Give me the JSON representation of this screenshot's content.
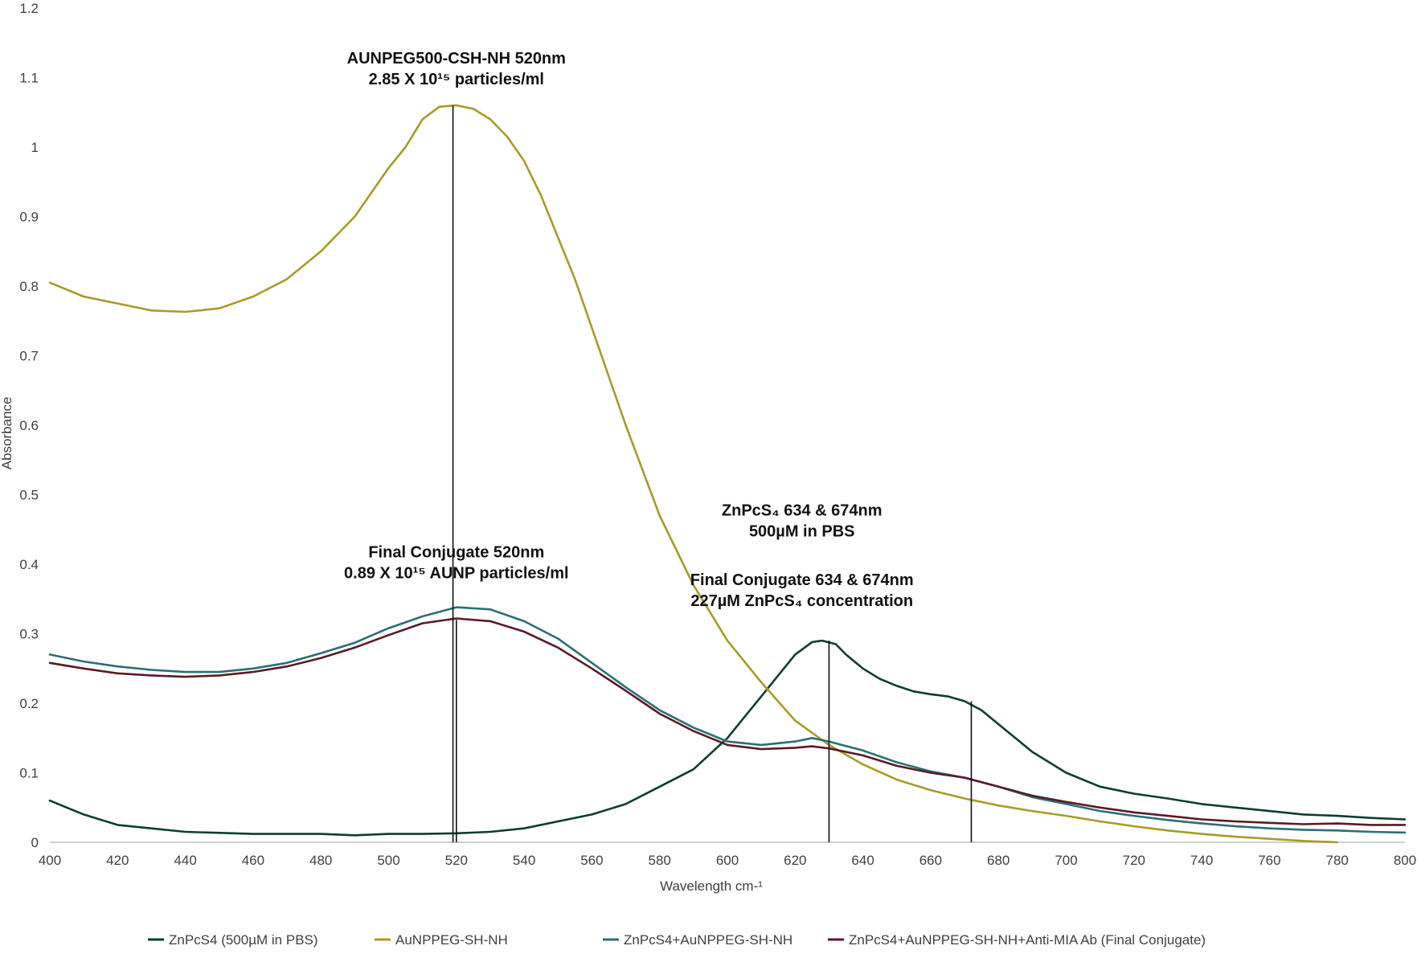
{
  "chart_data": {
    "type": "line",
    "title": "",
    "xlabel": "Wavelength cm-¹",
    "ylabel": "Absorbance",
    "xlim": [
      400,
      800
    ],
    "ylim": [
      0,
      1.2
    ],
    "x_ticks": [
      "400",
      "420",
      "440",
      "460",
      "480",
      "500",
      "520",
      "540",
      "560",
      "580",
      "600",
      "620",
      "640",
      "660",
      "680",
      "700",
      "720",
      "740",
      "760",
      "780",
      "800"
    ],
    "y_ticks": [
      "0",
      "0.1",
      "0.2",
      "0.3",
      "0.4",
      "0.5",
      "0.6",
      "0.7",
      "0.8",
      "0.9",
      "1",
      "1.1",
      "1.2"
    ],
    "grid": false,
    "legend_position": "bottom",
    "series": [
      {
        "name": "ZnPcS4 (500µM in PBS)",
        "color": "#0f3d2e",
        "points": [
          [
            400,
            0.06
          ],
          [
            405,
            0.05
          ],
          [
            410,
            0.04
          ],
          [
            420,
            0.025
          ],
          [
            430,
            0.02
          ],
          [
            440,
            0.015
          ],
          [
            460,
            0.012
          ],
          [
            480,
            0.012
          ],
          [
            490,
            0.01
          ],
          [
            500,
            0.012
          ],
          [
            510,
            0.012
          ],
          [
            520,
            0.013
          ],
          [
            530,
            0.015
          ],
          [
            540,
            0.02
          ],
          [
            550,
            0.03
          ],
          [
            560,
            0.04
          ],
          [
            570,
            0.055
          ],
          [
            580,
            0.08
          ],
          [
            590,
            0.105
          ],
          [
            600,
            0.15
          ],
          [
            605,
            0.18
          ],
          [
            610,
            0.21
          ],
          [
            615,
            0.24
          ],
          [
            620,
            0.27
          ],
          [
            625,
            0.288
          ],
          [
            628,
            0.29
          ],
          [
            632,
            0.285
          ],
          [
            635,
            0.27
          ],
          [
            640,
            0.25
          ],
          [
            645,
            0.235
          ],
          [
            650,
            0.225
          ],
          [
            655,
            0.217
          ],
          [
            660,
            0.213
          ],
          [
            665,
            0.21
          ],
          [
            670,
            0.203
          ],
          [
            675,
            0.19
          ],
          [
            680,
            0.17
          ],
          [
            690,
            0.13
          ],
          [
            700,
            0.1
          ],
          [
            710,
            0.08
          ],
          [
            720,
            0.07
          ],
          [
            730,
            0.063
          ],
          [
            740,
            0.055
          ],
          [
            750,
            0.05
          ],
          [
            760,
            0.045
          ],
          [
            770,
            0.04
          ],
          [
            780,
            0.038
          ],
          [
            790,
            0.035
          ],
          [
            800,
            0.033
          ]
        ]
      },
      {
        "name": "AuNPPEG-SH-NH",
        "color": "#a89b28",
        "points": [
          [
            400,
            0.805
          ],
          [
            410,
            0.785
          ],
          [
            420,
            0.775
          ],
          [
            430,
            0.765
          ],
          [
            440,
            0.763
          ],
          [
            450,
            0.768
          ],
          [
            460,
            0.785
          ],
          [
            470,
            0.81
          ],
          [
            480,
            0.85
          ],
          [
            490,
            0.9
          ],
          [
            500,
            0.97
          ],
          [
            505,
            1.0
          ],
          [
            510,
            1.04
          ],
          [
            515,
            1.058
          ],
          [
            520,
            1.06
          ],
          [
            525,
            1.055
          ],
          [
            530,
            1.04
          ],
          [
            535,
            1.015
          ],
          [
            540,
            0.98
          ],
          [
            545,
            0.93
          ],
          [
            550,
            0.87
          ],
          [
            555,
            0.81
          ],
          [
            560,
            0.74
          ],
          [
            570,
            0.6
          ],
          [
            580,
            0.47
          ],
          [
            590,
            0.37
          ],
          [
            600,
            0.29
          ],
          [
            610,
            0.23
          ],
          [
            620,
            0.175
          ],
          [
            630,
            0.14
          ],
          [
            640,
            0.112
          ],
          [
            650,
            0.09
          ],
          [
            660,
            0.075
          ],
          [
            670,
            0.063
          ],
          [
            680,
            0.053
          ],
          [
            690,
            0.045
          ],
          [
            700,
            0.038
          ],
          [
            710,
            0.03
          ],
          [
            720,
            0.023
          ],
          [
            730,
            0.017
          ],
          [
            740,
            0.012
          ],
          [
            750,
            0.008
          ],
          [
            760,
            0.005
          ],
          [
            770,
            0.002
          ],
          [
            780,
            0.0
          ]
        ]
      },
      {
        "name": "ZnPcS4+AuNPPEG-SH-NH",
        "color": "#2b6f74",
        "points": [
          [
            400,
            0.27
          ],
          [
            410,
            0.26
          ],
          [
            420,
            0.253
          ],
          [
            430,
            0.248
          ],
          [
            440,
            0.245
          ],
          [
            450,
            0.245
          ],
          [
            460,
            0.25
          ],
          [
            470,
            0.258
          ],
          [
            480,
            0.272
          ],
          [
            490,
            0.287
          ],
          [
            500,
            0.308
          ],
          [
            510,
            0.325
          ],
          [
            520,
            0.338
          ],
          [
            530,
            0.335
          ],
          [
            540,
            0.318
          ],
          [
            550,
            0.293
          ],
          [
            560,
            0.258
          ],
          [
            570,
            0.223
          ],
          [
            580,
            0.19
          ],
          [
            590,
            0.165
          ],
          [
            600,
            0.145
          ],
          [
            610,
            0.14
          ],
          [
            620,
            0.145
          ],
          [
            625,
            0.15
          ],
          [
            630,
            0.145
          ],
          [
            640,
            0.132
          ],
          [
            650,
            0.115
          ],
          [
            660,
            0.102
          ],
          [
            670,
            0.093
          ],
          [
            680,
            0.08
          ],
          [
            690,
            0.065
          ],
          [
            700,
            0.055
          ],
          [
            710,
            0.045
          ],
          [
            720,
            0.038
          ],
          [
            730,
            0.032
          ],
          [
            740,
            0.027
          ],
          [
            750,
            0.023
          ],
          [
            760,
            0.02
          ],
          [
            770,
            0.018
          ],
          [
            780,
            0.017
          ],
          [
            790,
            0.015
          ],
          [
            800,
            0.014
          ]
        ]
      },
      {
        "name": "ZnPcS4+AuNPPEG-SH-NH+Anti-MIA Ab (Final Conjugate)",
        "color": "#5a1a24",
        "points": [
          [
            400,
            0.258
          ],
          [
            410,
            0.25
          ],
          [
            420,
            0.243
          ],
          [
            430,
            0.24
          ],
          [
            440,
            0.238
          ],
          [
            450,
            0.24
          ],
          [
            460,
            0.245
          ],
          [
            470,
            0.253
          ],
          [
            480,
            0.265
          ],
          [
            490,
            0.28
          ],
          [
            500,
            0.298
          ],
          [
            510,
            0.315
          ],
          [
            520,
            0.322
          ],
          [
            530,
            0.318
          ],
          [
            540,
            0.303
          ],
          [
            550,
            0.28
          ],
          [
            560,
            0.25
          ],
          [
            570,
            0.218
          ],
          [
            580,
            0.185
          ],
          [
            590,
            0.16
          ],
          [
            600,
            0.14
          ],
          [
            610,
            0.134
          ],
          [
            620,
            0.136
          ],
          [
            625,
            0.138
          ],
          [
            630,
            0.135
          ],
          [
            640,
            0.125
          ],
          [
            650,
            0.11
          ],
          [
            660,
            0.1
          ],
          [
            670,
            0.093
          ],
          [
            680,
            0.08
          ],
          [
            690,
            0.067
          ],
          [
            700,
            0.058
          ],
          [
            710,
            0.05
          ],
          [
            720,
            0.043
          ],
          [
            730,
            0.038
          ],
          [
            740,
            0.033
          ],
          [
            750,
            0.03
          ],
          [
            760,
            0.028
          ],
          [
            770,
            0.026
          ],
          [
            780,
            0.027
          ],
          [
            790,
            0.025
          ],
          [
            800,
            0.025
          ]
        ]
      }
    ],
    "annotations": [
      {
        "text_lines": [
          "AUNPEG500-CSH-NH 520nm",
          "2.85 X 10¹⁵ particles/ml"
        ],
        "x": 520,
        "y": 1.12
      },
      {
        "text_lines": [
          "Final Conjugate 520nm",
          "0.89 X 10¹⁵ AUNP particles/ml"
        ],
        "x": 520,
        "y": 0.41
      },
      {
        "text_lines": [
          "ZnPcS₄ 634 & 674nm",
          "500µM in PBS"
        ],
        "x": 622,
        "y": 0.47
      },
      {
        "text_lines": [
          "Final  Conjugate 634 & 674nm",
          "227µM ZnPcS₄ concentration"
        ],
        "x": 622,
        "y": 0.37
      }
    ],
    "markers": [
      {
        "x": 519,
        "y_top": 1.06,
        "y_bottom": 0.0
      },
      {
        "x": 520,
        "y_top": 0.32,
        "y_bottom": 0.0
      },
      {
        "x": 630,
        "y_top": 0.29,
        "y_bottom": 0.0
      },
      {
        "x": 672,
        "y_top": 0.203,
        "y_bottom": 0.0
      }
    ]
  }
}
